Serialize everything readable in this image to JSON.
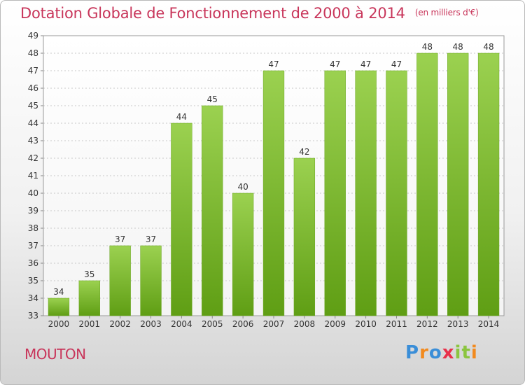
{
  "chart_data": {
    "type": "bar",
    "title": "Dotation Globale de Fonctionnement de 2000 à 2014",
    "subtitle": "(en milliers d'€)",
    "categories": [
      "2000",
      "2001",
      "2002",
      "2003",
      "2004",
      "2005",
      "2006",
      "2007",
      "2008",
      "2009",
      "2010",
      "2011",
      "2012",
      "2013",
      "2014"
    ],
    "values": [
      34,
      35,
      37,
      37,
      44,
      45,
      40,
      47,
      42,
      47,
      47,
      47,
      48,
      48,
      48
    ],
    "ylim": [
      33,
      49
    ],
    "yticks": [
      33,
      34,
      35,
      36,
      37,
      38,
      39,
      40,
      41,
      42,
      43,
      44,
      45,
      46,
      47,
      48,
      49
    ],
    "grid": true,
    "bar_color": "#7fbf2e"
  },
  "footer": {
    "commune": "MOUTON",
    "logo_text": "Proxiti"
  }
}
